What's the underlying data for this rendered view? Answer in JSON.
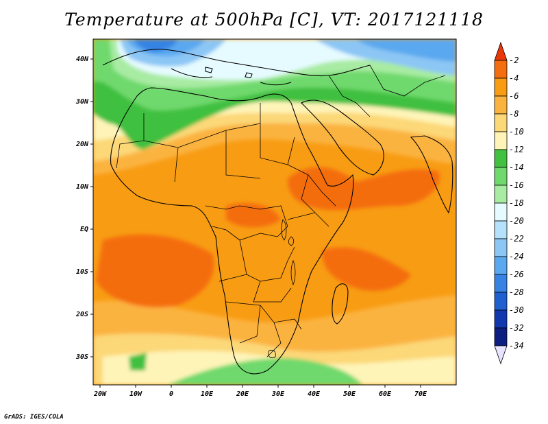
{
  "title": "Temperature at 500hPa [C], VT: 2017121118",
  "credit": "GrADS: IGES/COLA",
  "x_ticks": [
    "20W",
    "10W",
    "0",
    "10E",
    "20E",
    "30E",
    "40E",
    "50E",
    "60E",
    "70E"
  ],
  "y_ticks": [
    "40N",
    "30N",
    "20N",
    "10N",
    "EQ",
    "10S",
    "20S",
    "30S"
  ],
  "colorbar": {
    "labels": [
      "-2",
      "-4",
      "-6",
      "-8",
      "-10",
      "-12",
      "-14",
      "-16",
      "-18",
      "-20",
      "-22",
      "-24",
      "-26",
      "-28",
      "-30",
      "-32",
      "-34"
    ],
    "colors": [
      "#e8380a",
      "#f46d0e",
      "#f89c14",
      "#fbb33f",
      "#fcd878",
      "#fef4b8",
      "#41c041",
      "#6fd96d",
      "#a8eba3",
      "#e6fbff",
      "#b6e1fb",
      "#8cc6f5",
      "#5aa8ef",
      "#3683e3",
      "#1f5fd0",
      "#1238b0",
      "#0c1f80",
      "#e8e4ff"
    ]
  },
  "field_colors": {
    "orange_main": "#f89c14",
    "orange_dark": "#f46d0e",
    "orange_light": "#fbb33f",
    "yellow": "#fcd878",
    "pale_yellow": "#fef4b8",
    "green": "#41c041",
    "light_green": "#6fd96d",
    "pale_green": "#a8eba3",
    "cyan": "#e6fbff",
    "blue_light": "#8cc6f5",
    "blue": "#3683e3"
  }
}
